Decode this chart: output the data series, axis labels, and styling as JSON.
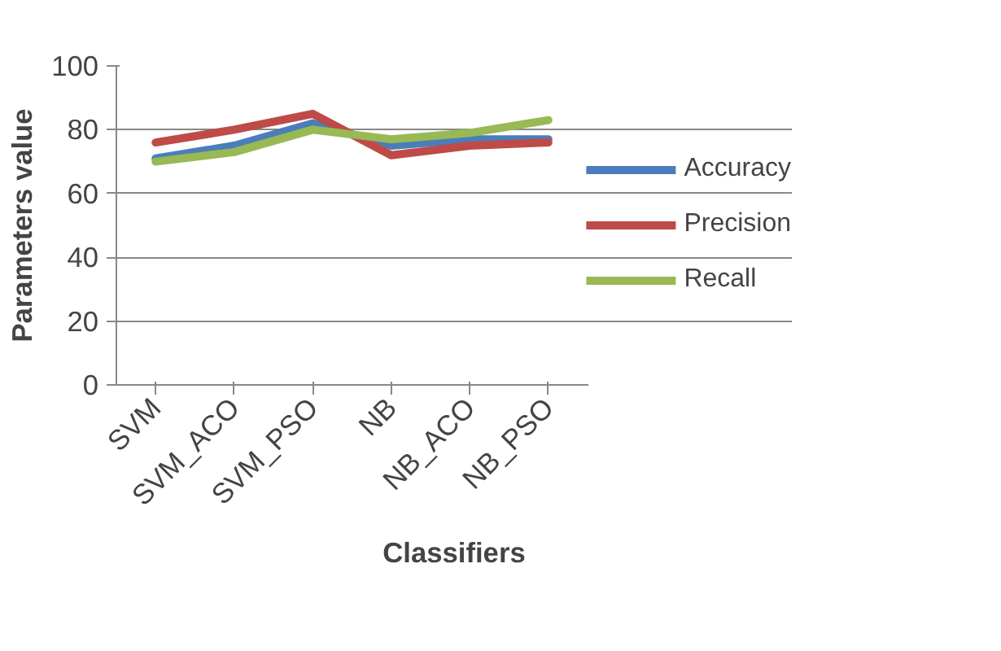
{
  "chart_data": {
    "type": "line",
    "xlabel": "Classifiers",
    "ylabel": "Parameters value",
    "categories": [
      "SVM",
      "SVM_ACO",
      "SVM_PSO",
      "NB",
      "NB_ACO",
      "NB_PSO"
    ],
    "ylim": [
      0,
      100
    ],
    "yticks": [
      0,
      20,
      40,
      60,
      80,
      100
    ],
    "grid": "y",
    "legend": "right",
    "marker": "none",
    "line_style": "solid",
    "series": [
      {
        "name": "Accuracy",
        "color": "#4a7ebb",
        "values": [
          71,
          75,
          82,
          75,
          77,
          77
        ]
      },
      {
        "name": "Precision",
        "color": "#be4b48",
        "values": [
          76,
          80,
          85,
          72,
          75,
          76
        ]
      },
      {
        "name": "Recall",
        "color": "#98b954",
        "values": [
          70,
          73,
          80,
          77,
          79,
          83
        ]
      }
    ]
  }
}
